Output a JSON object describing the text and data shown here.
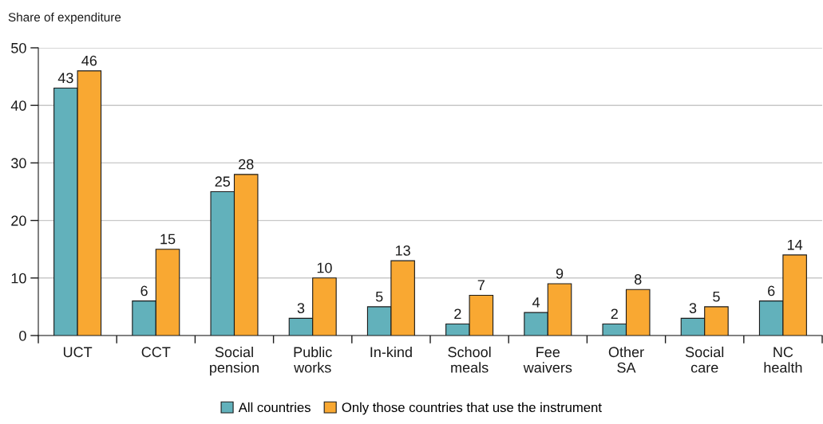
{
  "chart_data": {
    "type": "bar",
    "ylabel": "Share of expenditure",
    "categories": [
      "UCT",
      "CCT",
      "Social pension",
      "Public works",
      "In-kind",
      "School meals",
      "Fee waivers",
      "Other SA",
      "Social care",
      "NC health"
    ],
    "series": [
      {
        "name": "All countries",
        "color": "#62b1bb",
        "values": [
          43,
          6,
          25,
          3,
          5,
          2,
          4,
          2,
          3,
          6
        ]
      },
      {
        "name": "Only those countries that use the instrument",
        "color": "#f9a832",
        "values": [
          46,
          15,
          28,
          10,
          13,
          7,
          9,
          8,
          5,
          14
        ]
      }
    ],
    "ylim": [
      0,
      50
    ],
    "yticks": [
      0,
      10,
      20,
      30,
      40,
      50
    ],
    "grid": "y",
    "legend": "bottom",
    "data_labels": true
  }
}
